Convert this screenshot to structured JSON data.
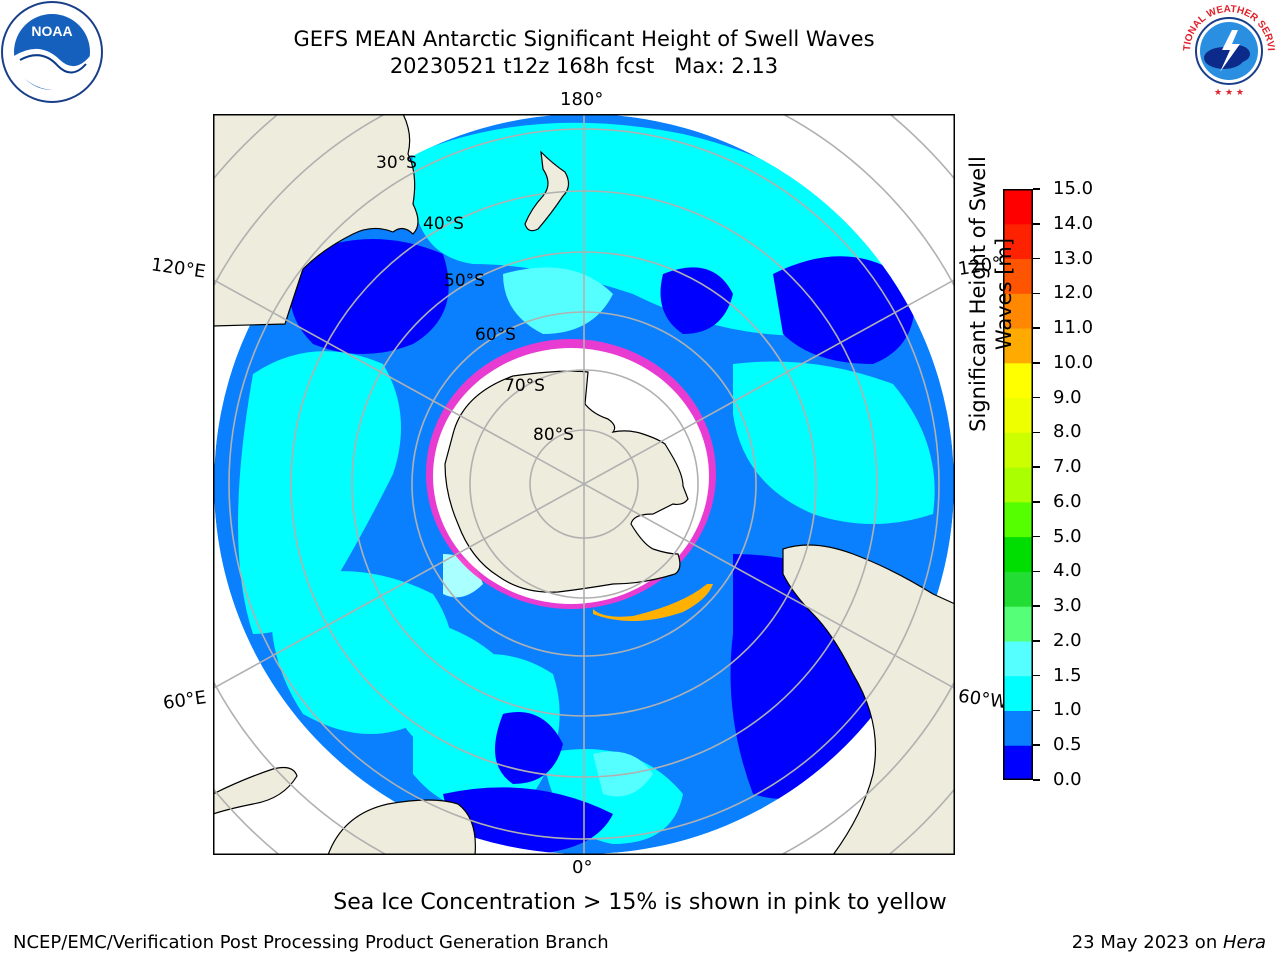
{
  "header": {
    "title": "GEFS MEAN Antarctic Significant Height of Swell Waves",
    "subtitle": "20230521 t12z 168h fcst   Max: 2.13"
  },
  "logos": {
    "left": "NOAA",
    "right": "NATIONAL WEATHER SERVICE"
  },
  "map": {
    "longitude_labels": {
      "top": "180°",
      "bottom": "0°",
      "upper_left": "120°E",
      "lower_left": "60°E",
      "upper_right": "120°",
      "lower_right": "60°W"
    },
    "latitude_labels": [
      "30°S",
      "40°S",
      "50°S",
      "60°S",
      "70°S",
      "80°S"
    ],
    "colors": {
      "land": "#eeecdc",
      "ocean_deep": "#0000ff",
      "ocean_mid": "#0a80ff",
      "ocean_light": "#00ffff",
      "ocean_pale": "#55ffff",
      "ice_edge": "#ff33cc",
      "grid": "#b0b0b0"
    }
  },
  "colorbar": {
    "title_line1": "Significant Height of Swell",
    "title_line2": "Waves [m]",
    "ticks": [
      "15.0",
      "14.0",
      "13.0",
      "12.0",
      "11.0",
      "10.0",
      "9.0",
      "8.0",
      "7.0",
      "6.0",
      "5.0",
      "4.0",
      "3.0",
      "2.0",
      "1.5",
      "1.0",
      "0.5",
      "0.0"
    ],
    "colors": [
      "#0000ff",
      "#0a80ff",
      "#00ffff",
      "#55ffff",
      "#aaffff",
      "#55ff77",
      "#22dd33",
      "#00dd00",
      "#55ff00",
      "#aaff00",
      "#ccff00",
      "#eeff00",
      "#ffff00",
      "#ffcc00",
      "#ffaa00",
      "#ff8800",
      "#ff5500",
      "#ff2200",
      "#ff0000"
    ]
  },
  "caption": "Sea Ice Concentration > 15% is shown in pink to yellow",
  "footer": {
    "left": "NCEP/EMC/Verification Post Processing Product Generation Branch",
    "right_prefix": "23 May 2023 on ",
    "right_host": "Hera"
  }
}
